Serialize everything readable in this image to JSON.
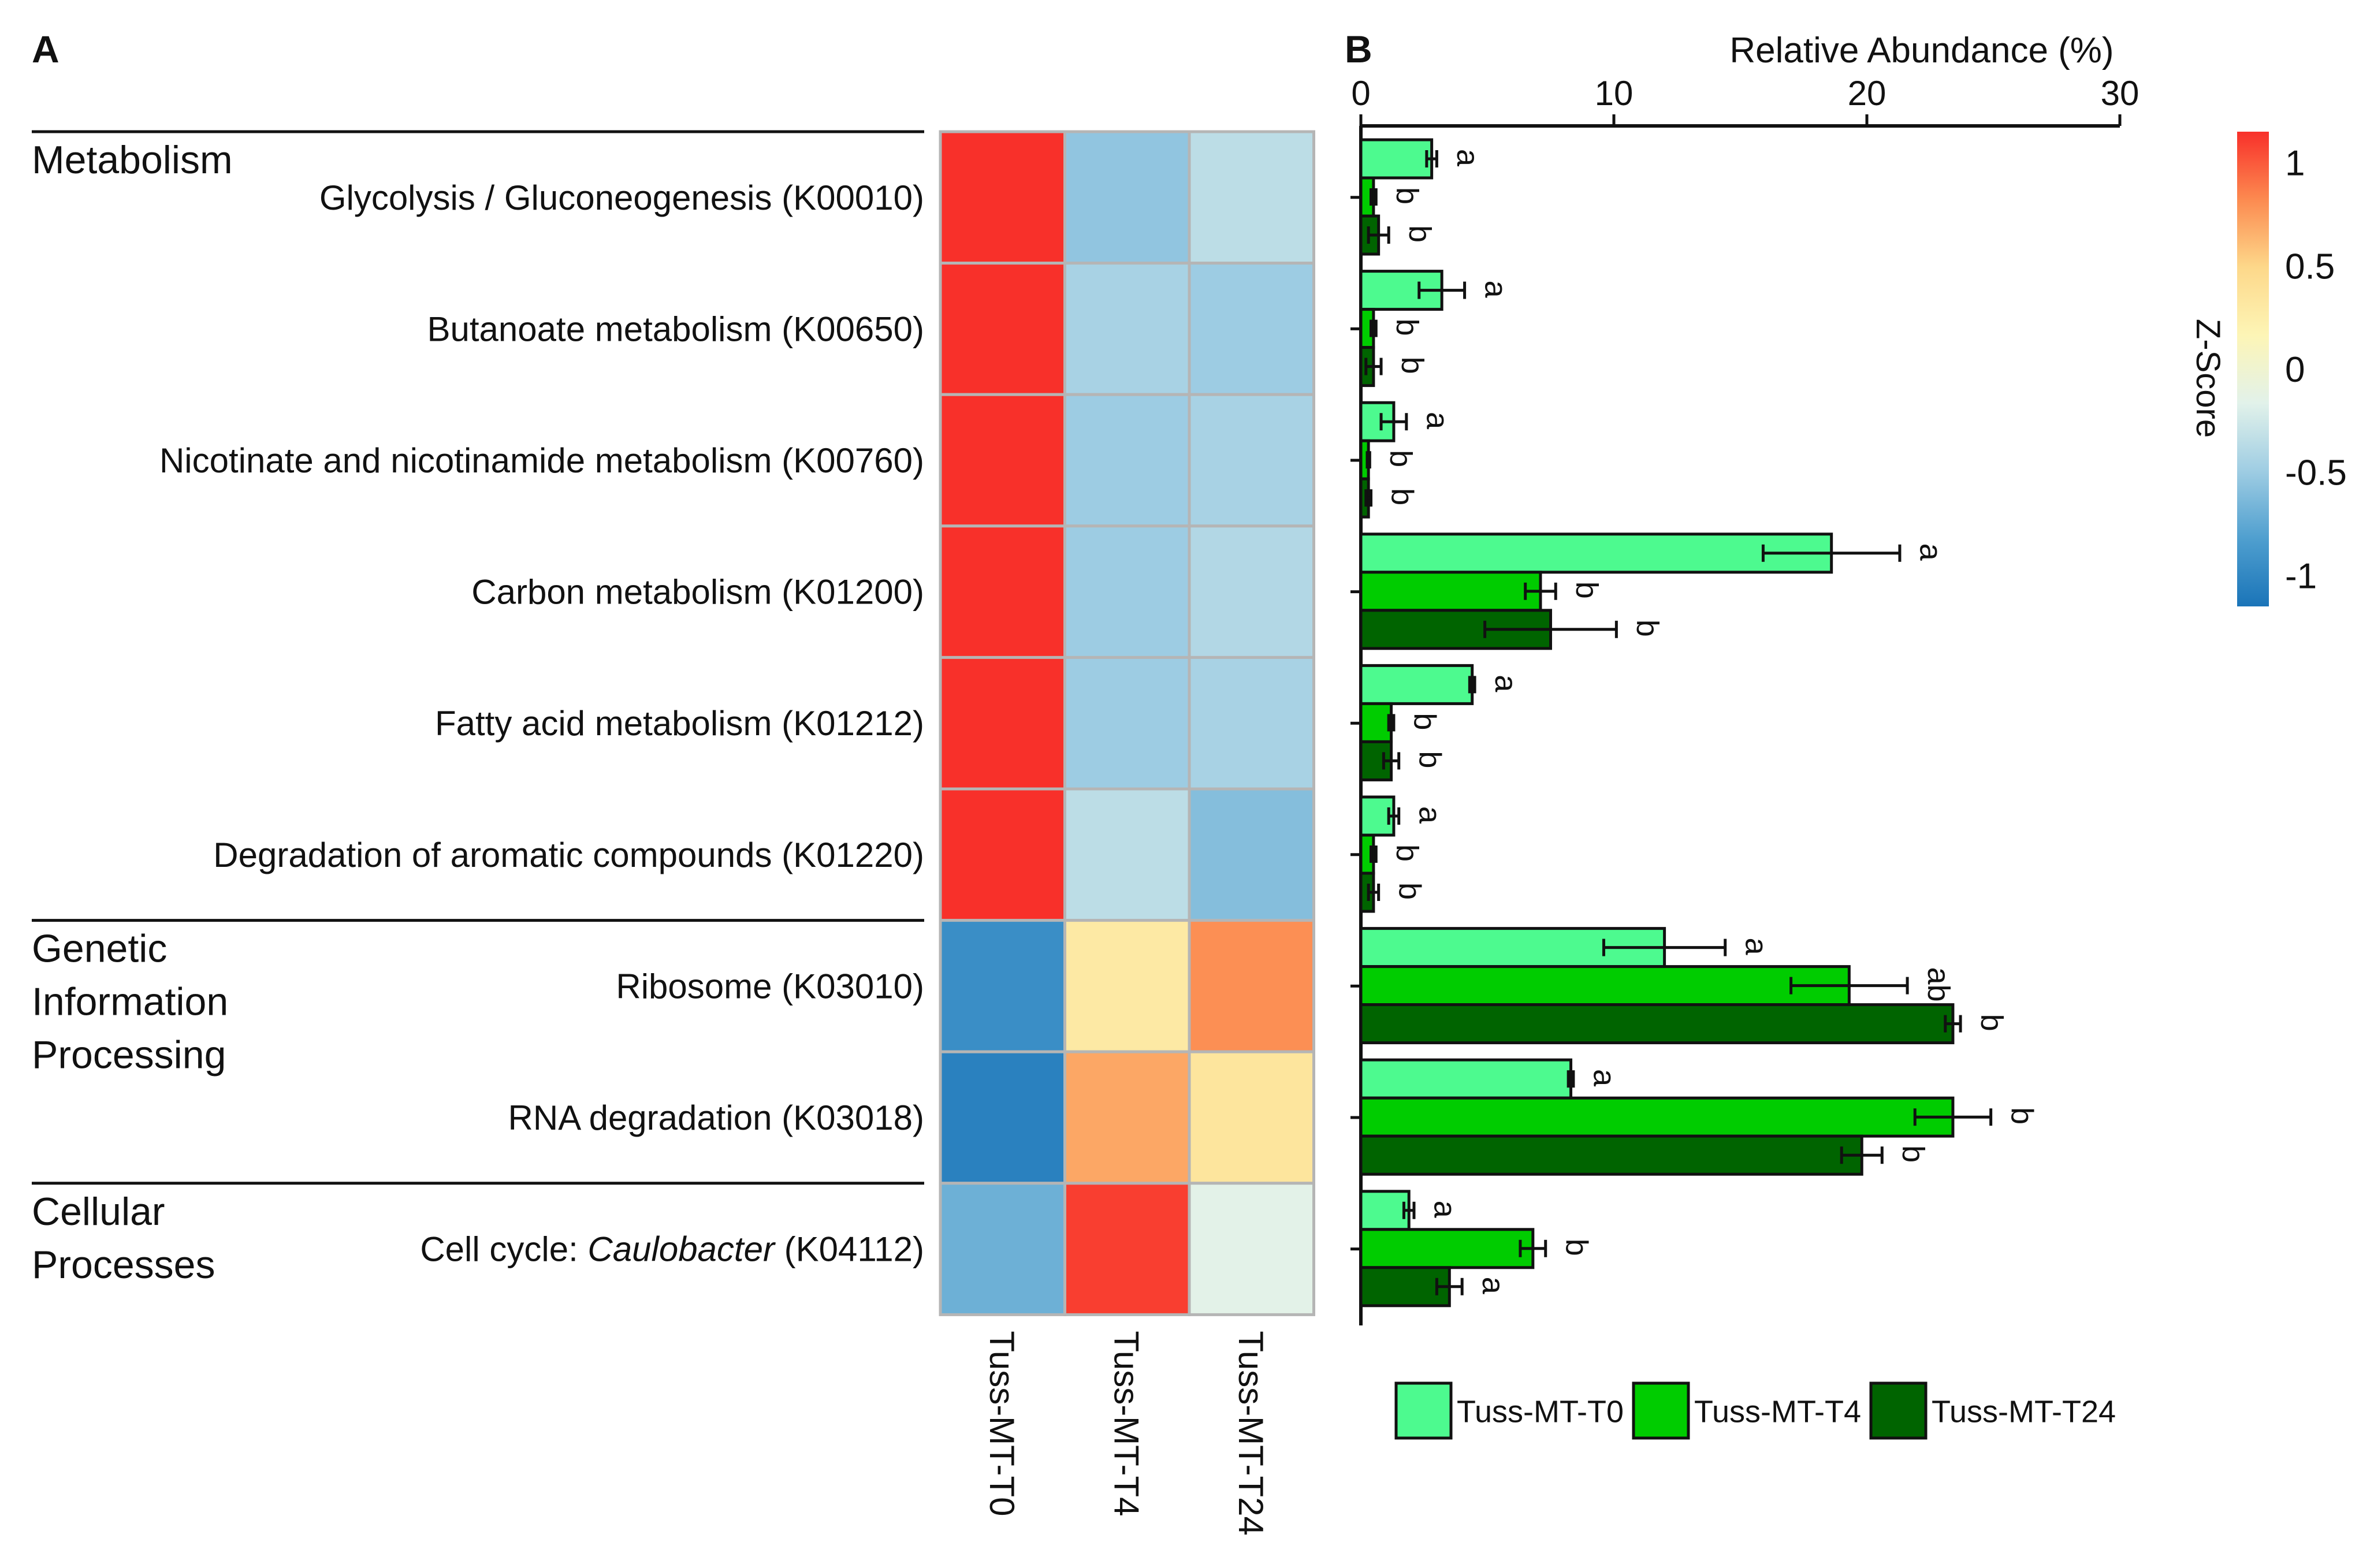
{
  "panels": {
    "a": "A",
    "b": "B"
  },
  "heatmap": {
    "categories": [
      {
        "name": "Metabolism",
        "lines": [
          "Metabolism"
        ],
        "rows": 6
      },
      {
        "name": "Genetic Information Processing",
        "lines": [
          "Genetic",
          "Information",
          "Processing"
        ],
        "rows": 2
      },
      {
        "name": "Cellular Processes",
        "lines": [
          "Cellular",
          "Processes"
        ],
        "rows": 1
      }
    ],
    "rows": [
      {
        "label": "Glycolysis / Gluconeogenesis (K00010)"
      },
      {
        "label": "Butanoate metabolism (K00650)"
      },
      {
        "label": "Nicotinate and nicotinamide metabolism (K00760)"
      },
      {
        "label": "Carbon metabolism (K01200)"
      },
      {
        "label": "Fatty acid metabolism (K01212)"
      },
      {
        "label": "Degradation of aromatic compounds (K01220)"
      },
      {
        "label": "Ribosome (K03010)"
      },
      {
        "label": "RNA degradation (K03018)"
      },
      {
        "label": "Cell cycle: ",
        "italic": "Caulobacter",
        "suffix": " (K04112)"
      }
    ],
    "columns": [
      "Tuss-MT-T0",
      "Tuss-MT-T4",
      "Tuss-MT-T24"
    ],
    "zscores": [
      [
        1.15,
        -0.55,
        -0.35
      ],
      [
        1.15,
        -0.45,
        -0.5
      ],
      [
        1.15,
        -0.5,
        -0.45
      ],
      [
        1.15,
        -0.5,
        -0.4
      ],
      [
        1.15,
        -0.5,
        -0.45
      ],
      [
        1.15,
        -0.35,
        -0.6
      ],
      [
        -0.95,
        0.3,
        0.8
      ],
      [
        -1.05,
        0.7,
        0.35
      ],
      [
        -0.7,
        1.1,
        -0.15
      ]
    ]
  },
  "colorbar": {
    "title": "Z-Score",
    "ticks": [
      "1",
      "0.5",
      "0",
      "-0.5",
      "-1"
    ],
    "tick_values": [
      1,
      0.5,
      0,
      -0.5,
      -1
    ],
    "range": [
      -1.15,
      1.15
    ],
    "colors": [
      "#1a74b8",
      "#4f9fcf",
      "#9fcde3",
      "#e2f2ea",
      "#fdf5b6",
      "#fdd88a",
      "#fc8a50",
      "#f8302a"
    ]
  },
  "chart_data": {
    "type": "bar",
    "orientation": "horizontal",
    "xlabel": "Relative Abundance (%)",
    "xlim": [
      0,
      30
    ],
    "xticks": [
      "0",
      "10",
      "20",
      "30"
    ],
    "xtick_values": [
      0,
      10,
      20,
      30
    ],
    "categories": [
      "Glycolysis / Gluconeogenesis (K00010)",
      "Butanoate metabolism (K00650)",
      "Nicotinate and nicotinamide metabolism (K00760)",
      "Carbon metabolism (K01200)",
      "Fatty acid metabolism (K01212)",
      "Degradation of aromatic compounds (K01220)",
      "Ribosome (K03010)",
      "RNA degradation (K03018)",
      "Cell cycle: Caulobacter (K04112)"
    ],
    "series": [
      {
        "name": "Tuss-MT-T0",
        "color": "#4dfa8f",
        "values": [
          2.8,
          3.2,
          1.3,
          18.6,
          4.4,
          1.3,
          12.0,
          8.3,
          1.9
        ],
        "errors": [
          0.2,
          0.9,
          0.5,
          2.7,
          0.1,
          0.2,
          2.4,
          0.1,
          0.2
        ],
        "letters": [
          "a",
          "a",
          "a",
          "a",
          "a",
          "a",
          "a",
          "a",
          "a"
        ]
      },
      {
        "name": "Tuss-MT-T4",
        "color": "#00cc00",
        "values": [
          0.5,
          0.5,
          0.3,
          7.1,
          1.2,
          0.5,
          19.3,
          23.4,
          6.8
        ],
        "errors": [
          0.1,
          0.1,
          0.05,
          0.6,
          0.1,
          0.1,
          2.3,
          1.5,
          0.5
        ],
        "letters": [
          "b",
          "b",
          "b",
          "b",
          "b",
          "b",
          "ab",
          "b",
          "b"
        ]
      },
      {
        "name": "Tuss-MT-T24",
        "color": "#006400",
        "values": [
          0.7,
          0.5,
          0.3,
          7.5,
          1.2,
          0.5,
          23.4,
          19.8,
          3.5
        ],
        "errors": [
          0.4,
          0.3,
          0.1,
          2.6,
          0.3,
          0.2,
          0.3,
          0.8,
          0.5
        ],
        "letters": [
          "b",
          "b",
          "b",
          "b",
          "b",
          "b",
          "b",
          "b",
          "a"
        ]
      }
    ],
    "legend": {
      "placement": "bottom"
    }
  }
}
